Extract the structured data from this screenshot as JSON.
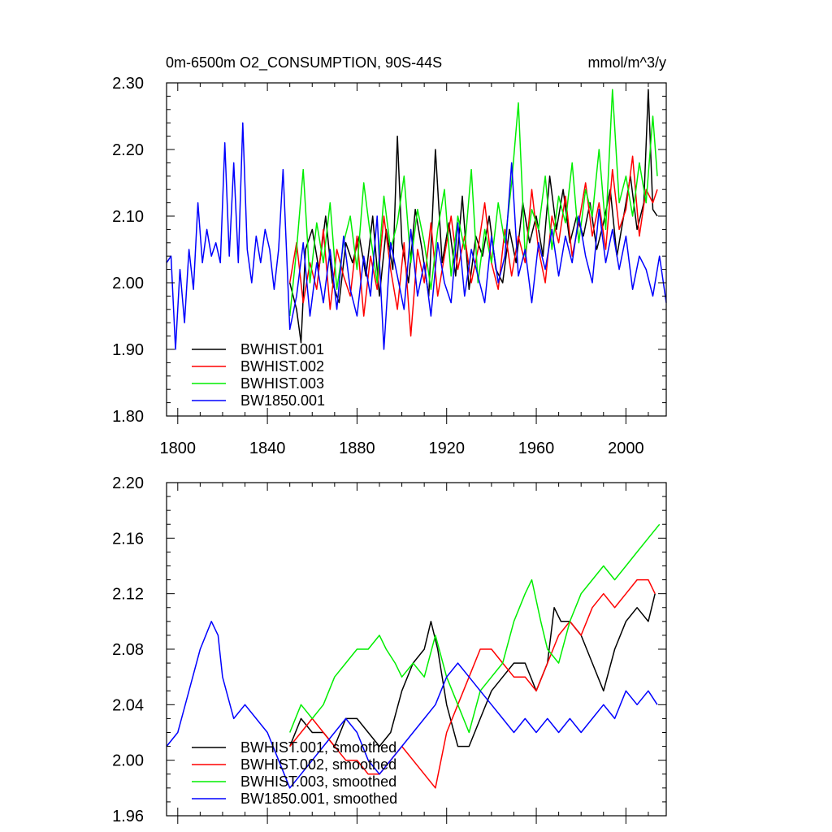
{
  "chart_data": [
    {
      "type": "line",
      "title": "0m-6500m O2_CONSUMPTION, 90S-44S",
      "units": "mmol/m^3/y",
      "xlim": [
        1795,
        2018
      ],
      "ylim": [
        1.8,
        2.3
      ],
      "xticks": [
        "1800",
        "1840",
        "1880",
        "1920",
        "1960",
        "2000"
      ],
      "yticks": [
        "1.80",
        "1.90",
        "2.00",
        "2.10",
        "2.20",
        "2.30"
      ],
      "legend_position": "bottom-left",
      "series": [
        {
          "name": "BWHIST.001",
          "color": "#000000",
          "x": [
            1850,
            1853,
            1855,
            1857,
            1860,
            1863,
            1866,
            1869,
            1872,
            1875,
            1878,
            1881,
            1884,
            1887,
            1890,
            1893,
            1896,
            1898,
            1900,
            1903,
            1906,
            1909,
            1912,
            1915,
            1918,
            1921,
            1924,
            1927,
            1930,
            1933,
            1936,
            1939,
            1942,
            1945,
            1948,
            1951,
            1954,
            1957,
            1960,
            1963,
            1966,
            1969,
            1972,
            1975,
            1978,
            1981,
            1984,
            1987,
            1990,
            1993,
            1996,
            1999,
            2002,
            2005,
            2008,
            2010,
            2012,
            2014
          ],
          "values": [
            2.0,
            1.96,
            1.91,
            2.05,
            2.08,
            2.02,
            2.1,
            2.0,
            1.97,
            2.06,
            2.03,
            2.07,
            2.01,
            2.1,
            1.98,
            2.08,
            2.02,
            2.22,
            2.06,
            2.0,
            2.11,
            2.05,
            1.98,
            2.2,
            2.03,
            2.09,
            2.01,
            2.13,
            1.99,
            2.07,
            2.04,
            2.1,
            2.02,
            2.0,
            2.08,
            2.03,
            2.12,
            2.06,
            2.1,
            2.04,
            2.16,
            2.08,
            2.14,
            2.06,
            2.1,
            2.07,
            2.12,
            2.05,
            2.09,
            2.14,
            2.04,
            2.1,
            2.16,
            2.08,
            2.12,
            2.29,
            2.11,
            2.1
          ]
        },
        {
          "name": "BWHIST.002",
          "color": "#ff0000",
          "x": [
            1850,
            1853,
            1856,
            1859,
            1862,
            1865,
            1868,
            1871,
            1874,
            1877,
            1880,
            1883,
            1886,
            1889,
            1892,
            1895,
            1898,
            1901,
            1904,
            1907,
            1910,
            1913,
            1916,
            1919,
            1922,
            1925,
            1928,
            1931,
            1934,
            1937,
            1940,
            1943,
            1946,
            1949,
            1952,
            1955,
            1958,
            1961,
            1964,
            1967,
            1970,
            1973,
            1976,
            1979,
            1982,
            1985,
            1988,
            1991,
            1994,
            1997,
            2000,
            2003,
            2006,
            2009,
            2012,
            2014
          ],
          "values": [
            2.0,
            2.06,
            1.97,
            2.03,
            1.99,
            2.08,
            1.96,
            2.05,
            2.01,
            1.98,
            2.07,
            1.95,
            2.04,
            1.99,
            2.1,
            2.02,
            1.96,
            2.06,
            1.92,
            2.05,
            2.0,
            2.09,
            1.98,
            2.04,
            2.1,
            2.02,
            2.07,
            2.0,
            2.05,
            2.12,
            2.03,
            1.99,
            2.08,
            2.01,
            2.07,
            2.03,
            2.14,
            2.05,
            2.0,
            2.1,
            2.06,
            2.13,
            2.04,
            2.09,
            2.15,
            2.07,
            2.12,
            2.05,
            2.17,
            2.08,
            2.11,
            2.19,
            2.07,
            2.14,
            2.12,
            2.14
          ]
        },
        {
          "name": "BWHIST.003",
          "color": "#00ee00",
          "x": [
            1850,
            1853,
            1856,
            1859,
            1862,
            1865,
            1868,
            1871,
            1874,
            1877,
            1880,
            1883,
            1886,
            1889,
            1892,
            1895,
            1898,
            1901,
            1904,
            1907,
            1910,
            1913,
            1916,
            1919,
            1922,
            1925,
            1928,
            1931,
            1934,
            1937,
            1940,
            1943,
            1946,
            1949,
            1952,
            1955,
            1958,
            1961,
            1964,
            1967,
            1970,
            1973,
            1976,
            1979,
            1982,
            1985,
            1988,
            1991,
            1994,
            1997,
            2000,
            2003,
            2006,
            2009,
            2012,
            2014
          ],
          "values": [
            1.95,
            2.05,
            2.17,
            2.0,
            2.09,
            2.03,
            2.12,
            1.99,
            2.06,
            2.1,
            2.02,
            2.15,
            2.07,
            2.0,
            2.13,
            2.05,
            2.09,
            2.16,
            2.03,
            2.11,
            2.06,
            1.99,
            2.08,
            2.14,
            2.01,
            2.1,
            2.05,
            2.17,
            2.0,
            2.08,
            2.03,
            2.12,
            2.06,
            2.15,
            2.27,
            2.04,
            2.11,
            2.08,
            2.16,
            2.05,
            2.13,
            2.09,
            2.18,
            2.06,
            2.14,
            2.1,
            2.2,
            2.08,
            2.29,
            2.12,
            2.16,
            2.1,
            2.18,
            2.12,
            2.25,
            2.16
          ]
        },
        {
          "name": "BW1850.001",
          "color": "#0000ff",
          "x": [
            1795,
            1797,
            1799,
            1801,
            1803,
            1805,
            1807,
            1809,
            1811,
            1813,
            1815,
            1817,
            1819,
            1821,
            1823,
            1825,
            1827,
            1829,
            1831,
            1833,
            1835,
            1837,
            1839,
            1841,
            1843,
            1845,
            1847,
            1850,
            1853,
            1856,
            1859,
            1862,
            1865,
            1868,
            1871,
            1874,
            1877,
            1880,
            1883,
            1886,
            1889,
            1892,
            1895,
            1898,
            1901,
            1904,
            1907,
            1910,
            1913,
            1916,
            1919,
            1922,
            1925,
            1928,
            1931,
            1934,
            1937,
            1940,
            1943,
            1946,
            1949,
            1952,
            1955,
            1958,
            1961,
            1964,
            1967,
            1970,
            1973,
            1976,
            1979,
            1982,
            1985,
            1988,
            1991,
            1994,
            1997,
            2000,
            2003,
            2006,
            2009,
            2012,
            2015,
            2018
          ],
          "values": [
            2.03,
            2.04,
            1.9,
            2.02,
            1.94,
            2.05,
            1.99,
            2.12,
            2.03,
            2.08,
            2.04,
            2.06,
            2.03,
            2.21,
            2.04,
            2.18,
            2.03,
            2.24,
            2.05,
            2.0,
            2.07,
            2.03,
            2.08,
            2.05,
            1.99,
            2.05,
            2.17,
            1.93,
            1.98,
            2.06,
            1.95,
            2.03,
            1.97,
            2.05,
            1.96,
            2.07,
            1.99,
            1.95,
            2.04,
            1.98,
            2.1,
            1.9,
            2.06,
            2.01,
            1.96,
            2.08,
            1.98,
            2.03,
            1.95,
            2.06,
            2.0,
            1.97,
            2.09,
            1.98,
            2.05,
            2.01,
            1.97,
            2.07,
            2.0,
            2.04,
            2.18,
            2.01,
            2.05,
            1.97,
            2.06,
            2.02,
            2.08,
            2.01,
            2.07,
            2.03,
            2.1,
            2.04,
            2.0,
            2.11,
            2.03,
            2.08,
            2.02,
            2.07,
            1.99,
            2.04,
            2.02,
            1.98,
            2.04,
            1.97
          ]
        }
      ]
    },
    {
      "type": "line",
      "title": "",
      "xlim": [
        1795,
        2018
      ],
      "ylim": [
        1.96,
        2.2
      ],
      "xticks": [],
      "yticks": [
        "1.96",
        "2.00",
        "2.04",
        "2.08",
        "2.12",
        "2.16",
        "2.20"
      ],
      "legend_position": "bottom-left",
      "series": [
        {
          "name": "BWHIST.001, smoothed",
          "color": "#000000",
          "x": [
            1850,
            1855,
            1860,
            1865,
            1870,
            1875,
            1880,
            1885,
            1890,
            1895,
            1900,
            1905,
            1910,
            1913,
            1916,
            1920,
            1925,
            1930,
            1935,
            1940,
            1945,
            1950,
            1955,
            1960,
            1965,
            1968,
            1971,
            1975,
            1980,
            1985,
            1990,
            1995,
            2000,
            2005,
            2010,
            2013
          ],
          "values": [
            2.01,
            2.03,
            2.02,
            2.02,
            2.01,
            2.03,
            2.03,
            2.02,
            2.01,
            2.02,
            2.05,
            2.07,
            2.08,
            2.1,
            2.08,
            2.04,
            2.01,
            2.01,
            2.03,
            2.05,
            2.06,
            2.07,
            2.07,
            2.05,
            2.07,
            2.11,
            2.1,
            2.1,
            2.09,
            2.07,
            2.05,
            2.08,
            2.1,
            2.11,
            2.1,
            2.12
          ]
        },
        {
          "name": "BWHIST.002, smoothed",
          "color": "#ff0000",
          "x": [
            1850,
            1855,
            1860,
            1865,
            1870,
            1875,
            1880,
            1885,
            1890,
            1895,
            1900,
            1905,
            1910,
            1915,
            1920,
            1925,
            1930,
            1935,
            1940,
            1945,
            1950,
            1955,
            1960,
            1965,
            1970,
            1975,
            1980,
            1985,
            1990,
            1995,
            2000,
            2005,
            2010,
            2013
          ],
          "values": [
            2.01,
            2.02,
            2.03,
            2.02,
            2.01,
            2.0,
            2.0,
            1.99,
            1.99,
            2.0,
            2.01,
            2.0,
            1.99,
            1.98,
            2.02,
            2.04,
            2.06,
            2.08,
            2.08,
            2.07,
            2.06,
            2.06,
            2.05,
            2.07,
            2.09,
            2.1,
            2.09,
            2.11,
            2.12,
            2.11,
            2.12,
            2.13,
            2.13,
            2.12
          ]
        },
        {
          "name": "BWHIST.003, smoothed",
          "color": "#00ee00",
          "x": [
            1850,
            1855,
            1860,
            1865,
            1870,
            1875,
            1880,
            1885,
            1890,
            1893,
            1897,
            1900,
            1905,
            1910,
            1915,
            1920,
            1925,
            1930,
            1935,
            1940,
            1945,
            1950,
            1955,
            1958,
            1962,
            1965,
            1970,
            1975,
            1980,
            1985,
            1990,
            1995,
            2000,
            2005,
            2010,
            2015
          ],
          "values": [
            2.02,
            2.04,
            2.03,
            2.04,
            2.06,
            2.07,
            2.08,
            2.08,
            2.09,
            2.08,
            2.07,
            2.06,
            2.07,
            2.06,
            2.09,
            2.06,
            2.04,
            2.02,
            2.05,
            2.06,
            2.07,
            2.1,
            2.12,
            2.13,
            2.1,
            2.08,
            2.07,
            2.1,
            2.12,
            2.13,
            2.14,
            2.13,
            2.14,
            2.15,
            2.16,
            2.17
          ]
        },
        {
          "name": "BW1850.001, smoothed",
          "color": "#0000ff",
          "x": [
            1795,
            1800,
            1805,
            1810,
            1815,
            1818,
            1820,
            1825,
            1830,
            1835,
            1840,
            1845,
            1850,
            1855,
            1860,
            1865,
            1870,
            1875,
            1880,
            1885,
            1890,
            1895,
            1900,
            1905,
            1910,
            1915,
            1920,
            1925,
            1930,
            1935,
            1940,
            1945,
            1950,
            1955,
            1960,
            1965,
            1970,
            1975,
            1980,
            1985,
            1990,
            1995,
            2000,
            2005,
            2010,
            2014
          ],
          "values": [
            2.01,
            2.02,
            2.05,
            2.08,
            2.1,
            2.09,
            2.06,
            2.03,
            2.04,
            2.03,
            2.02,
            2.0,
            1.98,
            1.99,
            2.0,
            2.01,
            2.02,
            2.03,
            2.02,
            2.0,
            1.99,
            2.0,
            2.01,
            2.02,
            2.03,
            2.04,
            2.06,
            2.07,
            2.06,
            2.05,
            2.04,
            2.03,
            2.02,
            2.03,
            2.02,
            2.03,
            2.02,
            2.03,
            2.02,
            2.03,
            2.04,
            2.03,
            2.05,
            2.04,
            2.05,
            2.04
          ]
        }
      ]
    }
  ]
}
